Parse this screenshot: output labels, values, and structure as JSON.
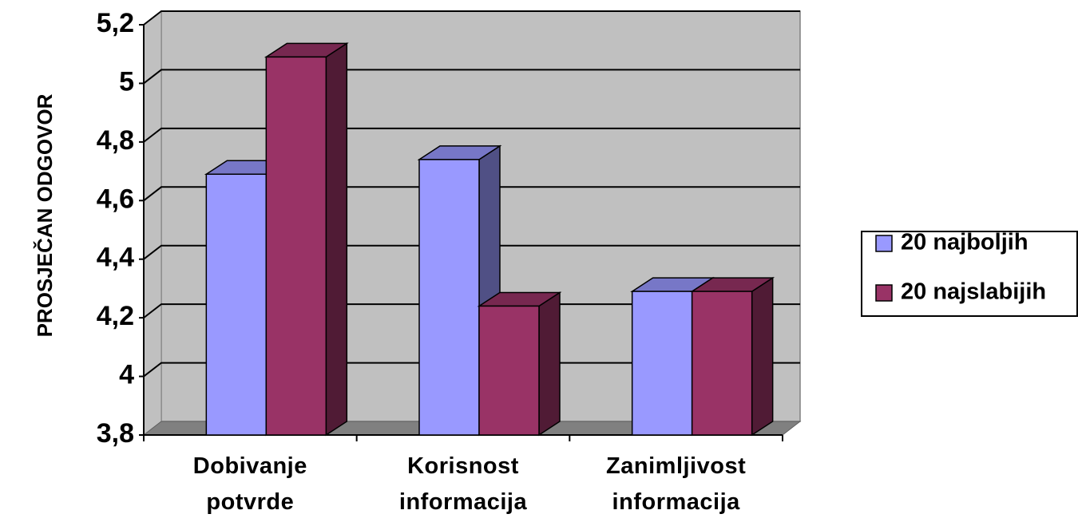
{
  "chart_data": {
    "type": "bar3d",
    "y_label": "PROSJEČAN ODGOVOR",
    "categories": [
      "Dobivanje potvrde",
      "Korisnost informacija",
      "Zanimljivost informacija"
    ],
    "series": [
      {
        "name": "20 najboljih",
        "color": "#9999ff",
        "values": [
          4.69,
          4.74,
          4.29
        ]
      },
      {
        "name": "20 najslabijih",
        "color": "#993366",
        "values": [
          5.09,
          4.24,
          4.29
        ]
      }
    ],
    "ylim": [
      3.8,
      5.2
    ],
    "yticks": [
      {
        "value": 3.8,
        "label": "3,8"
      },
      4,
      {
        "value": 4.2,
        "label": "4,2"
      },
      {
        "value": 4.4,
        "label": "4,4"
      },
      {
        "value": 4.6,
        "label": "4,6"
      },
      {
        "value": 4.8,
        "label": "4,8"
      },
      5,
      {
        "value": 5.2,
        "label": "5,2"
      }
    ],
    "grid": true,
    "legend": "right"
  }
}
